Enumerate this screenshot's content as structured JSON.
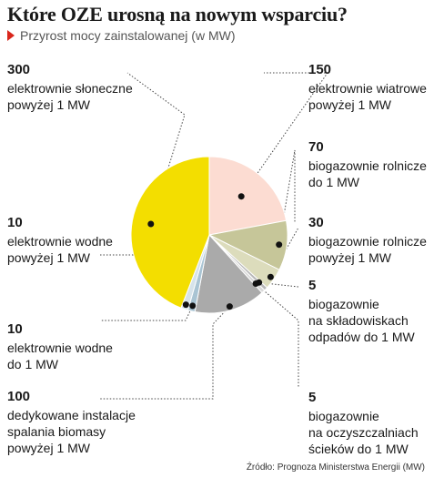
{
  "title": "Które OZE urosną na nowym wsparciu?",
  "subtitle": "Przyrost mocy zainstalowanej (w MW)",
  "source": "Źródło: Prognoza Ministerstwa Energii (MW)",
  "chart_data": {
    "type": "pie",
    "unit": "MW",
    "slices": [
      {
        "value": 150,
        "value_label": "150",
        "label_lines": [
          "elektrownie wiatrowe",
          "powyżej 1 MW"
        ],
        "color": "#fcdcd2"
      },
      {
        "value": 70,
        "value_label": "70",
        "label_lines": [
          "biogazownie rolnicze",
          "do 1 MW"
        ],
        "color": "#c6c699"
      },
      {
        "value": 30,
        "value_label": "30",
        "label_lines": [
          "biogazownie rolnicze",
          "powyżej 1 MW"
        ],
        "color": "#dcdcbc"
      },
      {
        "value": 5,
        "value_label": "5",
        "label_lines": [
          "biogazownie",
          "na składowiskach",
          "odpadów do 1 MW"
        ],
        "color": "#b8b8b8"
      },
      {
        "value": 5,
        "value_label": "5",
        "label_lines": [
          "biogazownie",
          "na oczyszczalniach",
          "ścieków do 1 MW"
        ],
        "color": "#d9d9d9"
      },
      {
        "value": 100,
        "value_label": "100",
        "label_lines": [
          "dedykowane instalacje",
          "spalania biomasy",
          "powyżej 1 MW"
        ],
        "color": "#aaaaaa"
      },
      {
        "value": 10,
        "value_label": "10",
        "label_lines": [
          "elektrownie wodne",
          "do 1 MW"
        ],
        "color": "#a9c4d3"
      },
      {
        "value": 10,
        "value_label": "10",
        "label_lines": [
          "elektrownie wodne",
          "powyżej 1 MW"
        ],
        "color": "#d6e3ea"
      },
      {
        "value": 300,
        "value_label": "300",
        "label_lines": [
          "elektrownie słoneczne",
          "powyżej 1 MW"
        ],
        "color": "#f3de00"
      }
    ]
  }
}
